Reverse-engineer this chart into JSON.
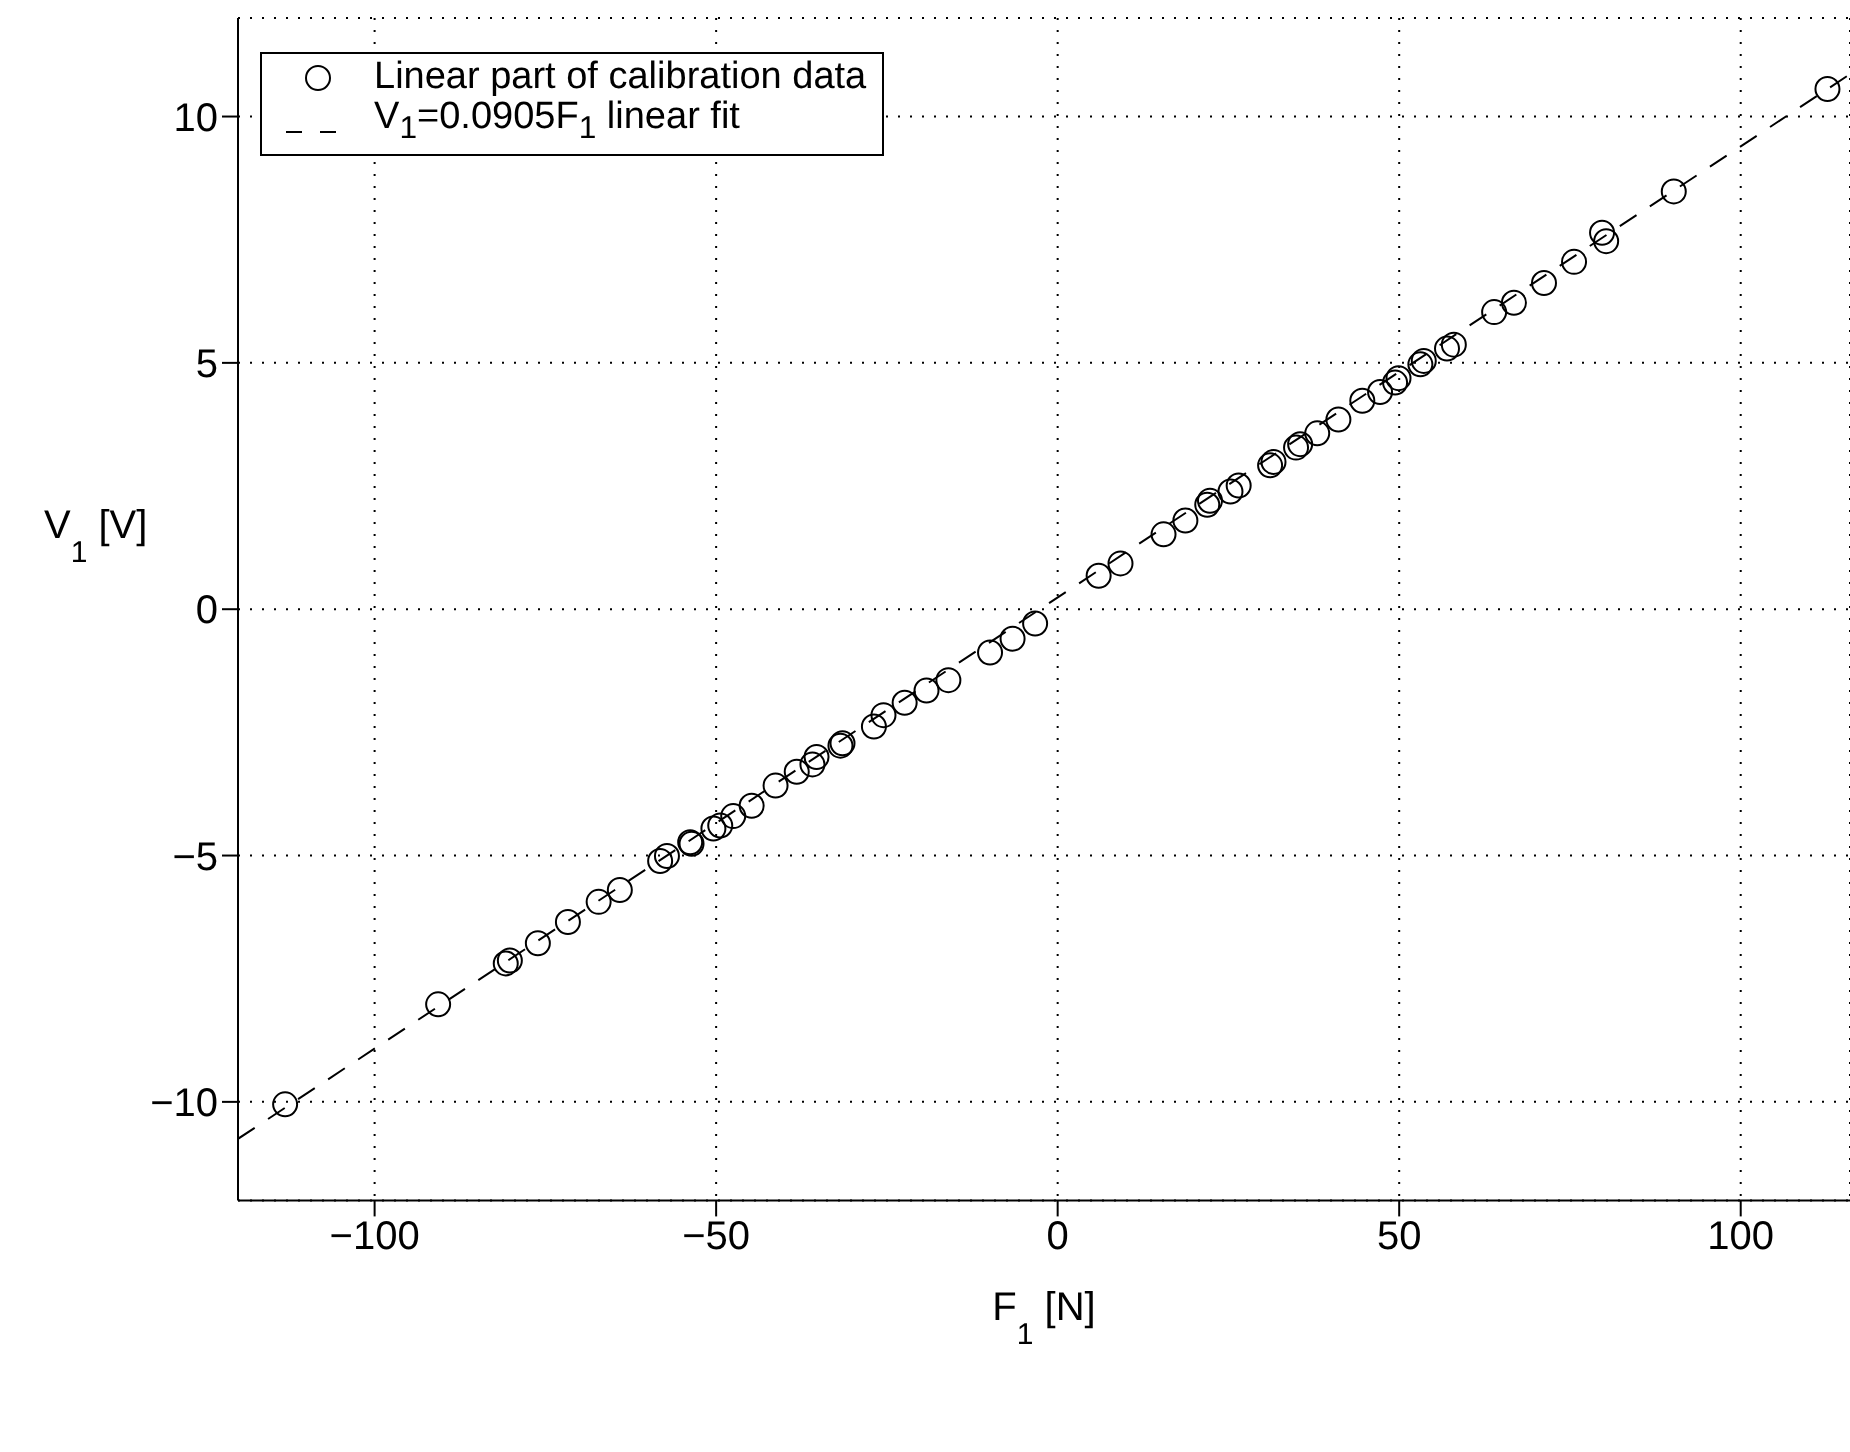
{
  "chart_data": {
    "type": "scatter",
    "xlabel": "F$_{1}$ [N]",
    "ylabel": "V$_{1}$ [V]",
    "xlim": [
      -120,
      116
    ],
    "ylim": [
      -12,
      12
    ],
    "xticks": [
      -100,
      -50,
      0,
      50,
      100
    ],
    "yticks": [
      -10,
      -5,
      0,
      5,
      10
    ],
    "grid": true,
    "legend": "top left",
    "marker": "circle",
    "series": [
      {
        "name": "Linear part of calibration data",
        "color": "#000000",
        "x": [
          -113.1,
          -90.7,
          -80.8,
          -80.2,
          -76.1,
          -71.7,
          -67.2,
          -64.1,
          -58.2,
          -57.2,
          -53.8,
          -53.6,
          -50.4,
          -49.4,
          -47.5,
          -44.8,
          -41.3,
          -38.2,
          -35.9,
          -35.3,
          -31.8,
          -31.5,
          -26.9,
          -25.5,
          -22.4,
          -19.2,
          -16.0,
          -9.9,
          -6.6,
          -3.3,
          6.0,
          9.2,
          15.5,
          18.7,
          21.9,
          22.3,
          25.3,
          26.5,
          31.1,
          31.6,
          34.9,
          35.5,
          38.0,
          41.1,
          44.6,
          47.2,
          49.4,
          49.9,
          53.1,
          53.6,
          57.0,
          58.0,
          63.9,
          66.8,
          71.2,
          75.6,
          79.7,
          80.3,
          90.2,
          112.7
        ],
        "values": [
          -10.05,
          -8.02,
          -7.19,
          -7.13,
          -6.78,
          -6.35,
          -5.94,
          -5.7,
          -5.11,
          -5.01,
          -4.73,
          -4.76,
          -4.45,
          -4.39,
          -4.2,
          -3.99,
          -3.58,
          -3.3,
          -3.15,
          -3.0,
          -2.77,
          -2.72,
          -2.38,
          -2.15,
          -1.9,
          -1.65,
          -1.44,
          -0.88,
          -0.6,
          -0.29,
          0.68,
          0.93,
          1.52,
          1.8,
          2.12,
          2.2,
          2.39,
          2.51,
          2.92,
          2.99,
          3.28,
          3.35,
          3.57,
          3.85,
          4.23,
          4.41,
          4.6,
          4.69,
          4.97,
          5.04,
          5.29,
          5.37,
          6.03,
          6.22,
          6.62,
          7.05,
          7.64,
          7.47,
          8.48,
          10.56
        ]
      },
      {
        "name": "V$_{1}$=0.0905F$_{1}$ linear fit",
        "type": "line",
        "color": "#000000",
        "line_style": "dashed",
        "marker": "none",
        "x": [
          -120,
          116
        ],
        "values": [
          -10.75,
          10.86
        ]
      }
    ]
  }
}
